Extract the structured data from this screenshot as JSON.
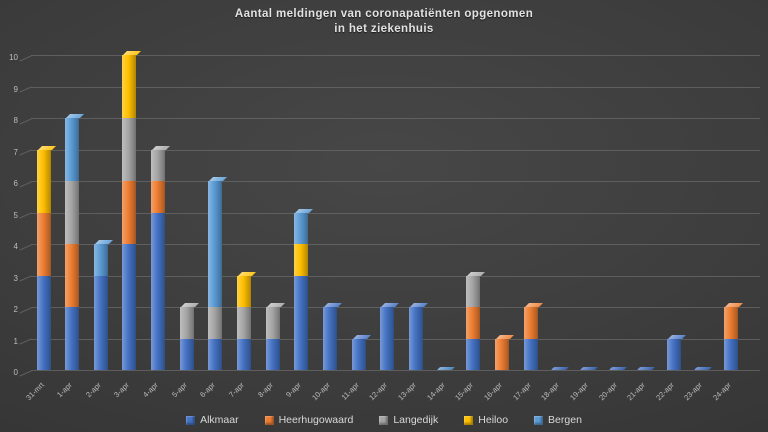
{
  "title": {
    "line1": "Aantal meldingen van coronapatiënten opgenomen",
    "line2": "in het ziekenhuis"
  },
  "colors": {
    "background": "#3d3d3d",
    "gridline": "#6a6a6a",
    "title_text": "#e2e2e2",
    "axis_text": "#bdbdbd",
    "legend_text": "#d9d9d9"
  },
  "y_axis": {
    "min": 0,
    "max": 10,
    "step": 1
  },
  "legend": {
    "position": "bottom",
    "items": [
      "Alkmaar",
      "Heerhugowaard",
      "Langedijk",
      "Heiloo",
      "Bergen"
    ]
  },
  "chart_data": {
    "type": "bar",
    "stacked": true,
    "style": "3d",
    "title": "Aantal meldingen van coronapatiënten opgenomen in het ziekenhuis",
    "xlabel": "",
    "ylabel": "",
    "ylim": [
      0,
      10
    ],
    "grid": true,
    "legend_position": "bottom",
    "categories": [
      "31-mrt",
      "1-apr",
      "2-apr",
      "3-apr",
      "4-apr",
      "5-apr",
      "6-apr",
      "7-apr",
      "8-apr",
      "9-apr",
      "10-apr",
      "11-apr",
      "12-apr",
      "13-apr",
      "14-apr",
      "15-apr",
      "16-apr",
      "17-apr",
      "18-apr",
      "19-apr",
      "20-apr",
      "21-apr",
      "22-apr",
      "23-apr",
      "24-apr"
    ],
    "series": [
      {
        "name": "Alkmaar",
        "color": "#4472c4",
        "values": [
          3,
          2,
          3,
          4,
          5,
          1,
          1,
          1,
          1,
          3,
          2,
          1,
          2,
          2,
          0,
          1,
          0,
          1,
          0,
          0,
          0,
          0,
          1,
          0,
          1
        ]
      },
      {
        "name": "Heerhugowaard",
        "color": "#ed7d31",
        "values": [
          2,
          2,
          0,
          2,
          1,
          0,
          0,
          0,
          0,
          0,
          0,
          0,
          0,
          0,
          0,
          1,
          1,
          1,
          0,
          0,
          0,
          0,
          0,
          0,
          1
        ]
      },
      {
        "name": "Langedijk",
        "color": "#a5a5a5",
        "values": [
          0,
          2,
          0,
          2,
          1,
          1,
          1,
          1,
          1,
          0,
          0,
          0,
          0,
          0,
          0,
          1,
          0,
          0,
          0,
          0,
          0,
          0,
          0,
          0,
          0
        ]
      },
      {
        "name": "Heiloo",
        "color": "#ffc000",
        "values": [
          2,
          0,
          0,
          2,
          0,
          0,
          0,
          1,
          0,
          1,
          0,
          0,
          0,
          0,
          0,
          0,
          0,
          0,
          0,
          0,
          0,
          0,
          0,
          0,
          0
        ]
      },
      {
        "name": "Bergen",
        "color": "#5b9bd5",
        "values": [
          0,
          2,
          1,
          0,
          0,
          0,
          4,
          0,
          0,
          1,
          0,
          0,
          0,
          0,
          0,
          0,
          0,
          0,
          0,
          0,
          0,
          0,
          0,
          0,
          0
        ]
      }
    ],
    "zero_marker": {
      "default_color": "#4472c4",
      "overrides": {
        "14-apr": "#5b9bd5"
      }
    }
  }
}
